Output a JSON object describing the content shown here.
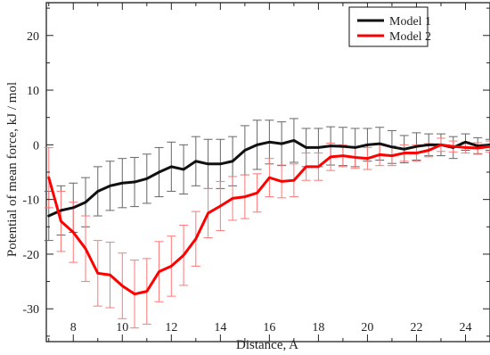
{
  "chart_data": {
    "type": "line",
    "title": "",
    "xlabel": "Distance, A",
    "ylabel": "Potential of mean force, kJ / mol",
    "xlim": [
      6.9,
      25.0
    ],
    "ylim": [
      -36,
      26
    ],
    "xticks": [
      8,
      10,
      12,
      14,
      16,
      18,
      20,
      22,
      24
    ],
    "yticks": [
      -30,
      -20,
      -10,
      0,
      10,
      20
    ],
    "xtick_labels": [
      "8",
      "10",
      "12",
      "14",
      "16",
      "18",
      "20",
      "22",
      "24"
    ],
    "ytick_labels": [
      "-30",
      "-20",
      "-10",
      "0",
      "10",
      "20"
    ],
    "grid": false,
    "legend_position": "top-right",
    "series": [
      {
        "name": "Model 1",
        "color": "#111111",
        "x": [
          7,
          7.5,
          8,
          8.5,
          9,
          9.5,
          10,
          10.5,
          11,
          11.5,
          12,
          12.5,
          13,
          13.5,
          14,
          14.5,
          15,
          15.5,
          16,
          16.5,
          17,
          17.5,
          18,
          18.5,
          19,
          19.5,
          20,
          20.5,
          21,
          21.5,
          22,
          22.5,
          23,
          23.5,
          24,
          24.5,
          25
        ],
        "y": [
          -13,
          -12,
          -11.5,
          -10.5,
          -8.5,
          -7.5,
          -7,
          -6.8,
          -6.2,
          -5,
          -4,
          -4.5,
          -3,
          -3.5,
          -3.5,
          -3,
          -1,
          0,
          0.5,
          0.2,
          0.8,
          -0.5,
          -0.5,
          -0.2,
          -0.3,
          -0.5,
          0,
          0.2,
          -0.4,
          -0.8,
          -0.3,
          0,
          0,
          -0.5,
          0.5,
          -0.2,
          0
        ],
        "error": [
          4.5,
          4.5,
          4.5,
          4.5,
          4.5,
          4.5,
          4.5,
          4.5,
          4.5,
          4.5,
          4.5,
          4.5,
          4.5,
          4.5,
          4.5,
          4.5,
          4.5,
          4.5,
          4.0,
          4.0,
          4.0,
          3.5,
          3.5,
          3.5,
          3.5,
          3.5,
          3.0,
          3.0,
          3.0,
          2.5,
          2.5,
          2.0,
          2.0,
          2.0,
          1.5,
          1.5,
          1.0
        ]
      },
      {
        "name": "Model 2",
        "color": "#ff0000",
        "x": [
          7,
          7.5,
          8,
          8.5,
          9,
          9.5,
          10,
          10.5,
          11,
          11.5,
          12,
          12.5,
          13,
          13.5,
          14,
          14.5,
          15,
          15.5,
          16,
          16.5,
          17,
          17.5,
          18,
          18.5,
          19,
          19.5,
          20,
          20.5,
          21,
          21.5,
          22,
          22.5,
          23,
          23.5,
          24,
          24.5,
          25
        ],
        "y": [
          -6,
          -14,
          -16,
          -19,
          -23.5,
          -23.8,
          -25.8,
          -27.3,
          -26.8,
          -23.2,
          -22.2,
          -20.2,
          -17.2,
          -12.5,
          -11.2,
          -9.8,
          -9.5,
          -8.8,
          -6,
          -6.7,
          -6.5,
          -4,
          -4,
          -2.2,
          -2,
          -2.3,
          -2.5,
          -1.8,
          -2,
          -1.5,
          -1.5,
          -1,
          0,
          -0.3,
          -0.5,
          -0.6,
          -0.3
        ],
        "error": [
          5.5,
          5.5,
          5.5,
          6,
          6,
          6,
          6,
          6.2,
          6,
          5.5,
          5.5,
          5.5,
          5,
          4.5,
          4.5,
          4,
          4,
          3.5,
          3.5,
          3,
          3,
          2.5,
          2.5,
          2.5,
          2,
          2,
          2,
          2,
          1.8,
          1.5,
          1.5,
          1.2,
          1.2,
          1,
          1,
          1,
          1
        ]
      }
    ]
  }
}
